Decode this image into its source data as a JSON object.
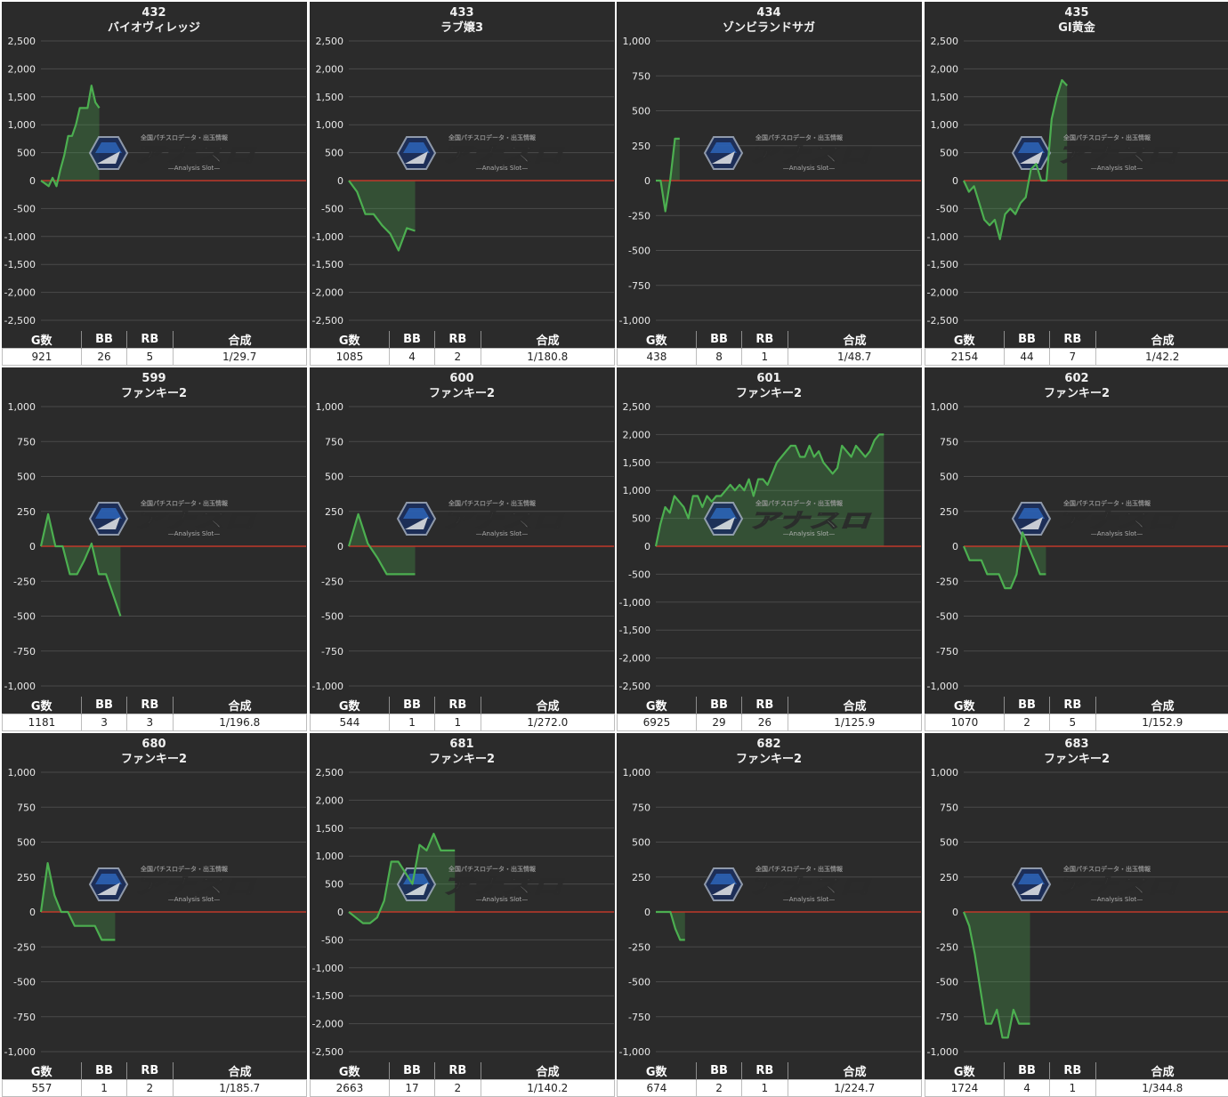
{
  "colors": {
    "background": "#2b2b2b",
    "grid": "#4a4a4a",
    "zero_line": "#c0392b",
    "line": "#4caf50",
    "fill": "rgba(76,175,80,0.28)"
  },
  "watermark": {
    "title": "アナスロ",
    "subtitle": "—Analysis Slot—",
    "tagline": "全国パチスロデータ・出玉情報"
  },
  "stats_headers": {
    "games": "G数",
    "bb": "BB",
    "rb": "RB",
    "combined": "合成"
  },
  "machines": [
    {
      "number": "432",
      "name": "バイオヴィレッジ",
      "stats": {
        "games": "921",
        "bb": "26",
        "rb": "5",
        "combined": "1/29.7"
      },
      "chart_data": {
        "type": "area",
        "y_ticks": [
          2500,
          2000,
          1500,
          1000,
          500,
          0,
          -500,
          -1000,
          -1500,
          -2000,
          -2500
        ],
        "ylim": [
          -2500,
          2500
        ],
        "x_end": 0.22,
        "values": [
          0,
          -50,
          -100,
          50,
          -100,
          200,
          450,
          800,
          800,
          1000,
          1300,
          1300,
          1300,
          1700,
          1400,
          1300
        ]
      }
    },
    {
      "number": "433",
      "name": "ラブ嬢3",
      "stats": {
        "games": "1085",
        "bb": "4",
        "rb": "2",
        "combined": "1/180.8"
      },
      "chart_data": {
        "type": "area",
        "y_ticks": [
          2500,
          2000,
          1500,
          1000,
          500,
          0,
          -500,
          -1000,
          -1500,
          -2000,
          -2500
        ],
        "ylim": [
          -2500,
          2500
        ],
        "x_end": 0.25,
        "values": [
          0,
          -200,
          -600,
          -600,
          -800,
          -950,
          -1250,
          -850,
          -900
        ]
      }
    },
    {
      "number": "434",
      "name": "ゾンビランドサガ",
      "stats": {
        "games": "438",
        "bb": "8",
        "rb": "1",
        "combined": "1/48.7"
      },
      "chart_data": {
        "type": "area",
        "y_ticks": [
          1000,
          750,
          500,
          250,
          0,
          -250,
          -500,
          -750,
          -1000
        ],
        "ylim": [
          -1000,
          1000
        ],
        "x_end": 0.09,
        "values": [
          0,
          0,
          -220,
          0,
          300,
          300
        ]
      }
    },
    {
      "number": "435",
      "name": "GI黄金",
      "stats": {
        "games": "2154",
        "bb": "44",
        "rb": "7",
        "combined": "1/42.2"
      },
      "chart_data": {
        "type": "area",
        "y_ticks": [
          2500,
          2000,
          1500,
          1000,
          500,
          0,
          -500,
          -1000,
          -1500,
          -2000,
          -2500
        ],
        "ylim": [
          -2500,
          2500
        ],
        "x_end": 0.39,
        "values": [
          0,
          -200,
          -100,
          -400,
          -700,
          -800,
          -700,
          -1050,
          -600,
          -500,
          -600,
          -400,
          -300,
          200,
          300,
          0,
          0,
          1100,
          1500,
          1800,
          1700
        ]
      }
    },
    {
      "number": "599",
      "name": "ファンキー2",
      "stats": {
        "games": "1181",
        "bb": "3",
        "rb": "3",
        "combined": "1/196.8"
      },
      "chart_data": {
        "type": "area",
        "y_ticks": [
          1000,
          750,
          500,
          250,
          0,
          -250,
          -500,
          -750,
          -1000
        ],
        "ylim": [
          -1000,
          1000
        ],
        "x_end": 0.3,
        "values": [
          0,
          230,
          0,
          0,
          -200,
          -200,
          -100,
          20,
          -200,
          -200,
          -350,
          -500
        ]
      }
    },
    {
      "number": "600",
      "name": "ファンキー2",
      "stats": {
        "games": "544",
        "bb": "1",
        "rb": "1",
        "combined": "1/272.0"
      },
      "chart_data": {
        "type": "area",
        "y_ticks": [
          1000,
          750,
          500,
          250,
          0,
          -250,
          -500,
          -750,
          -1000
        ],
        "ylim": [
          -1000,
          1000
        ],
        "x_end": 0.25,
        "values": [
          0,
          230,
          20,
          -80,
          -200,
          -200,
          -200,
          -200
        ]
      }
    },
    {
      "number": "601",
      "name": "ファンキー2",
      "stats": {
        "games": "6925",
        "bb": "29",
        "rb": "26",
        "combined": "1/125.9"
      },
      "chart_data": {
        "type": "area",
        "y_ticks": [
          2500,
          2000,
          1500,
          1000,
          500,
          0,
          -500,
          -1000,
          -1500,
          -2000,
          -2500
        ],
        "ylim": [
          -2500,
          2500
        ],
        "x_end": 0.86,
        "values": [
          0,
          400,
          700,
          600,
          900,
          800,
          700,
          500,
          900,
          900,
          700,
          900,
          800,
          900,
          900,
          1000,
          1100,
          1000,
          1100,
          1000,
          1200,
          900,
          1200,
          1200,
          1100,
          1300,
          1500,
          1600,
          1700,
          1800,
          1800,
          1600,
          1600,
          1800,
          1600,
          1700,
          1500,
          1400,
          1300,
          1400,
          1800,
          1700,
          1600,
          1800,
          1700,
          1600,
          1700,
          1900,
          2000,
          2000
        ]
      }
    },
    {
      "number": "602",
      "name": "ファンキー2",
      "stats": {
        "games": "1070",
        "bb": "2",
        "rb": "5",
        "combined": "1/152.9"
      },
      "chart_data": {
        "type": "area",
        "y_ticks": [
          1000,
          750,
          500,
          250,
          0,
          -250,
          -500,
          -750,
          -1000
        ],
        "ylim": [
          -1000,
          1000
        ],
        "x_end": 0.31,
        "values": [
          0,
          -100,
          -100,
          -100,
          -200,
          -200,
          -200,
          -300,
          -300,
          -200,
          100,
          0,
          -100,
          -200,
          -200
        ]
      }
    },
    {
      "number": "680",
      "name": "ファンキー2",
      "stats": {
        "games": "557",
        "bb": "1",
        "rb": "2",
        "combined": "1/185.7"
      },
      "chart_data": {
        "type": "area",
        "y_ticks": [
          1000,
          750,
          500,
          250,
          0,
          -250,
          -500,
          -750,
          -1000
        ],
        "ylim": [
          -1000,
          1000
        ],
        "x_end": 0.28,
        "values": [
          0,
          350,
          120,
          0,
          0,
          -100,
          -100,
          -100,
          -100,
          -200,
          -200,
          -200
        ]
      }
    },
    {
      "number": "681",
      "name": "ファンキー2",
      "stats": {
        "games": "2663",
        "bb": "17",
        "rb": "2",
        "combined": "1/140.2"
      },
      "chart_data": {
        "type": "area",
        "y_ticks": [
          2500,
          2000,
          1500,
          1000,
          500,
          0,
          -500,
          -1000,
          -1500,
          -2000,
          -2500
        ],
        "ylim": [
          -2500,
          2500
        ],
        "x_end": 0.4,
        "values": [
          0,
          -100,
          -200,
          -200,
          -100,
          200,
          900,
          900,
          700,
          500,
          1200,
          1100,
          1400,
          1100,
          1100,
          1100
        ]
      }
    },
    {
      "number": "682",
      "name": "ファンキー2",
      "stats": {
        "games": "674",
        "bb": "2",
        "rb": "1",
        "combined": "1/224.7"
      },
      "chart_data": {
        "type": "area",
        "y_ticks": [
          1000,
          750,
          500,
          250,
          0,
          -250,
          -500,
          -750,
          -1000
        ],
        "ylim": [
          -1000,
          1000
        ],
        "x_end": 0.11,
        "values": [
          0,
          0,
          0,
          0,
          -120,
          -200,
          -200
        ]
      }
    },
    {
      "number": "683",
      "name": "ファンキー2",
      "stats": {
        "games": "1724",
        "bb": "4",
        "rb": "1",
        "combined": "1/344.8"
      },
      "chart_data": {
        "type": "area",
        "y_ticks": [
          1000,
          750,
          500,
          250,
          0,
          -250,
          -500,
          -750,
          -1000
        ],
        "ylim": [
          -1000,
          1000
        ],
        "x_end": 0.25,
        "values": [
          0,
          -100,
          -300,
          -550,
          -800,
          -800,
          -700,
          -900,
          -900,
          -700,
          -800,
          -800,
          -800
        ]
      }
    }
  ]
}
